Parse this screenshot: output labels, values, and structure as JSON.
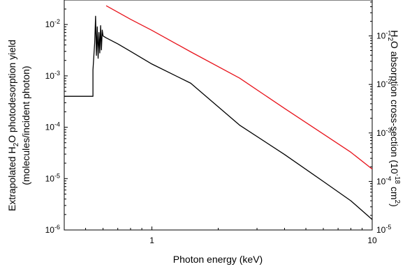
{
  "chart_data": {
    "type": "line",
    "title": "",
    "xlabel": "Photon energy (keV)",
    "x_scale": "log",
    "xlim": [
      0.4,
      10
    ],
    "x_tick_labels": [
      {
        "value": 1,
        "label": "1"
      },
      {
        "value": 10,
        "label": "10"
      }
    ],
    "y_left": {
      "label": {
        "line1_pre": "Extrapolated H",
        "line1_sub": "2",
        "line1_post": "O photodesorption yield",
        "line2": "(molecules/incident photon)"
      },
      "scale": "log",
      "ylim": [
        1e-06,
        0.03
      ],
      "tick_labels": [
        {
          "value": 1e-06,
          "base": "10",
          "exp": "-6"
        },
        {
          "value": 1e-05,
          "base": "10",
          "exp": "-5"
        },
        {
          "value": 0.0001,
          "base": "10",
          "exp": "-4"
        },
        {
          "value": 0.001,
          "base": "10",
          "exp": "-3"
        },
        {
          "value": 0.01,
          "base": "10",
          "exp": "-2"
        }
      ]
    },
    "y_right": {
      "label": {
        "pre": "H",
        "sub": "2",
        "mid": "O absorption cross-section (10",
        "sup1": "-18",
        "mid2": " cm",
        "sup2": "2",
        "post": ")"
      },
      "scale": "log",
      "ylim": [
        1e-05,
        0.55
      ],
      "tick_labels": [
        {
          "value": 1e-05,
          "base": "10",
          "exp": "-5"
        },
        {
          "value": 0.0001,
          "base": "10",
          "exp": "-4"
        },
        {
          "value": 0.001,
          "base": "10",
          "exp": "-3"
        },
        {
          "value": 0.01,
          "base": "10",
          "exp": "-2"
        },
        {
          "value": 0.1,
          "base": "10",
          "exp": "-1"
        }
      ]
    },
    "series": [
      {
        "axis": "left",
        "color": "#000000",
        "x": [
          0.4,
          0.54,
          0.54,
          0.55,
          0.555,
          0.56,
          0.565,
          0.57,
          0.575,
          0.58,
          0.585,
          0.59,
          0.595,
          0.6,
          0.62,
          0.7,
          0.8,
          1.0,
          1.5,
          2.5,
          4.0,
          6.0,
          8.0,
          10.0
        ],
        "y": [
          0.0004,
          0.0004,
          0.0013,
          0.0045,
          0.0145,
          0.0025,
          0.009,
          0.0022,
          0.007,
          0.0028,
          0.0095,
          0.0032,
          0.0078,
          0.006,
          0.0055,
          0.0042,
          0.003,
          0.0017,
          0.00072,
          0.00011,
          2.95e-05,
          8.8e-06,
          3.7e-06,
          1.6e-06
        ]
      },
      {
        "axis": "right",
        "color": "#e8141c",
        "x": [
          0.62,
          0.8,
          1.0,
          1.5,
          2.5,
          4.0,
          6.0,
          8.0,
          10.0
        ],
        "y": [
          0.42,
          0.22,
          0.13,
          0.047,
          0.0135,
          0.0032,
          0.00095,
          0.0004,
          0.00018
        ]
      }
    ]
  }
}
